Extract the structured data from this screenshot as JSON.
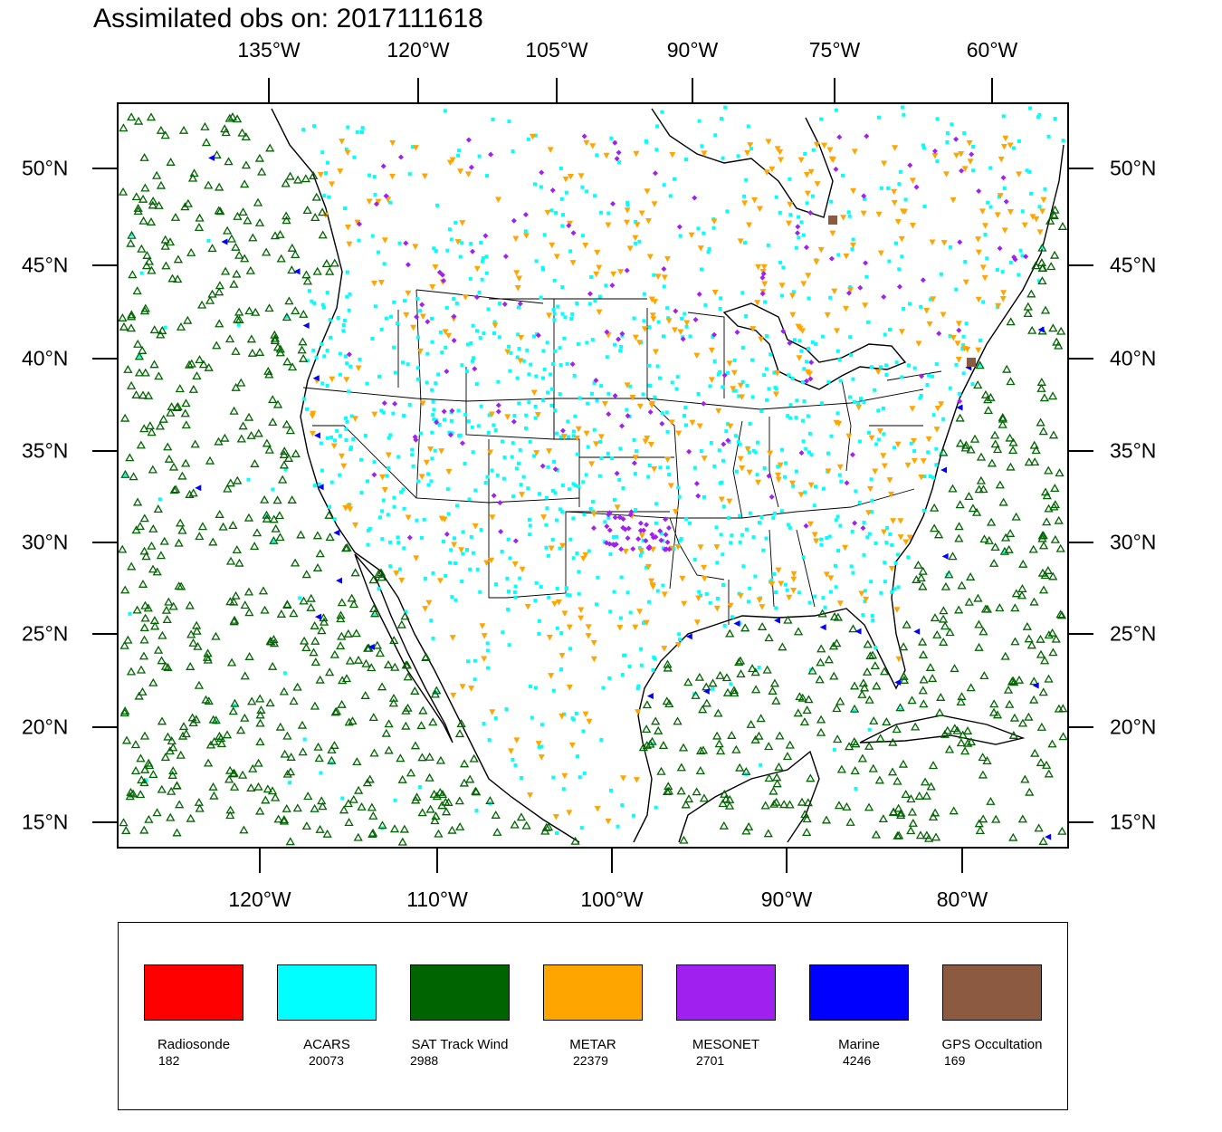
{
  "title": "Assimilated obs on: 2017111618",
  "top_axis_labels": [
    "135°W",
    "120°W",
    "105°W",
    "90°W",
    "75°W",
    "60°W"
  ],
  "bottom_axis_labels": [
    "120°W",
    "110°W",
    "100°W",
    "90°W",
    "80°W"
  ],
  "lat_labels": [
    "50°N",
    "45°N",
    "40°N",
    "35°N",
    "30°N",
    "25°N",
    "20°N",
    "15°N"
  ],
  "legend": [
    {
      "name": "Radiosonde",
      "count": "182",
      "color": "#ff0000"
    },
    {
      "name": "ACARS",
      "count": "20073",
      "color": "#00ffff"
    },
    {
      "name": "SAT Track Wind",
      "count": "2988",
      "color": "#006400"
    },
    {
      "name": "METAR",
      "count": "22379",
      "color": "#ffa500"
    },
    {
      "name": "MESONET",
      "count": "2701",
      "color": "#a020f0"
    },
    {
      "name": "Marine",
      "count": "4246",
      "color": "#0000ff"
    },
    {
      "name": "GPS Occultation",
      "count": "169",
      "color": "#8b5a40"
    }
  ],
  "colors": {
    "acars": "#00ffff",
    "sat_track_wind": "#006400",
    "metar": "#ffa500",
    "mesonet": "#a020f0",
    "marine": "#0000ff",
    "gps": "#8b5a40",
    "radiosonde": "#ff0000",
    "coastline": "#000000"
  }
}
